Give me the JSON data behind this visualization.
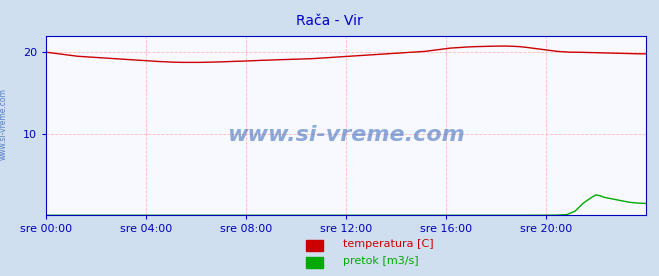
{
  "title": "Rača - Vir",
  "title_color": "#0000cc",
  "bg_color": "#d0dff0",
  "plot_bg_color": "#f8f8ff",
  "fig_size": [
    6.59,
    2.76
  ],
  "dpi": 100,
  "xlim": [
    0,
    288
  ],
  "ylim": [
    0,
    22
  ],
  "yticks": [
    10,
    20
  ],
  "xtick_labels": [
    "sre 00:00",
    "sre 04:00",
    "sre 08:00",
    "sre 12:00",
    "sre 16:00",
    "sre 20:00"
  ],
  "xtick_positions": [
    0,
    48,
    96,
    144,
    192,
    240
  ],
  "temp_color": "#cc0000",
  "flow_color": "#00aa00",
  "axis_color": "#0000bb",
  "grid_color": "#ffbbbb",
  "watermark": "www.si-vreme.com",
  "watermark_color": "#3366bb",
  "side_watermark": "www.si-vreme.com",
  "legend_temp": "temperatura [C]",
  "legend_flow": "pretok [m3/s]",
  "temp_data": [
    20.0,
    19.9,
    19.8,
    19.7,
    19.6,
    19.5,
    19.45,
    19.4,
    19.35,
    19.3,
    19.25,
    19.2,
    19.15,
    19.1,
    19.05,
    19.0,
    18.95,
    18.9,
    18.85,
    18.82,
    18.78,
    18.76,
    18.75,
    18.75,
    18.75,
    18.76,
    18.78,
    18.8,
    18.82,
    18.85,
    18.88,
    18.9,
    18.93,
    18.96,
    19.0,
    19.02,
    19.05,
    19.08,
    19.1,
    19.13,
    19.15,
    19.18,
    19.2,
    19.25,
    19.3,
    19.35,
    19.4,
    19.45,
    19.5,
    19.55,
    19.6,
    19.65,
    19.7,
    19.75,
    19.8,
    19.85,
    19.9,
    19.95,
    20.0,
    20.05,
    20.1,
    20.2,
    20.3,
    20.4,
    20.5,
    20.55,
    20.6,
    20.65,
    20.68,
    20.7,
    20.72,
    20.74,
    20.75,
    20.75,
    20.72,
    20.68,
    20.6,
    20.5,
    20.4,
    20.3,
    20.2,
    20.1,
    20.05,
    20.0,
    20.0,
    19.98,
    19.96,
    19.94,
    19.92,
    19.9,
    19.88,
    19.86,
    19.84,
    19.82,
    19.8,
    19.8
  ],
  "flow_x": [
    0,
    230,
    231,
    232,
    233,
    245,
    250,
    254,
    258,
    262,
    264,
    266,
    268,
    272,
    276,
    280,
    284,
    288
  ],
  "flow_y": [
    0.0,
    0.0,
    0.0,
    0.0,
    0.0,
    0.02,
    0.08,
    0.5,
    1.5,
    2.2,
    2.5,
    2.4,
    2.2,
    2.0,
    1.8,
    1.6,
    1.5,
    1.45
  ]
}
